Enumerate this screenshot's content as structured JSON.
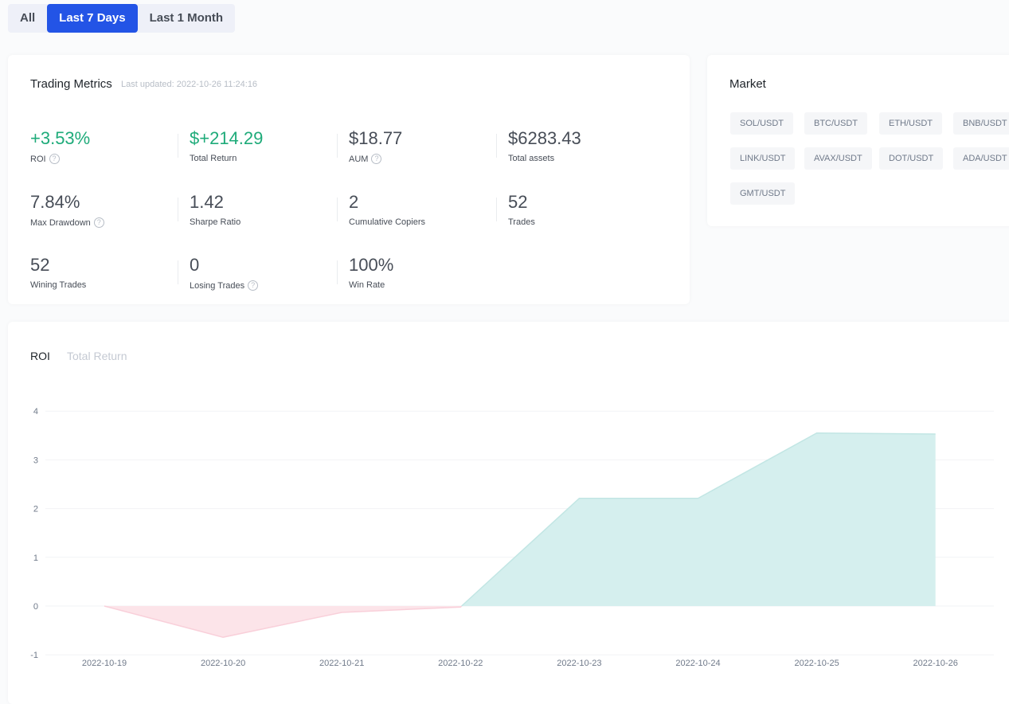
{
  "range_tabs": [
    {
      "label": "All"
    },
    {
      "label": "Last 7 Days",
      "active": true
    },
    {
      "label": "Last 1 Month"
    }
  ],
  "metrics": {
    "title": "Trading Metrics",
    "last_updated": "Last updated: 2022-10-26 11:24:16",
    "items": [
      {
        "value": "+3.53%",
        "label": "ROI",
        "help": true,
        "positive": true
      },
      {
        "value": "$+214.29",
        "label": "Total Return",
        "positive": true
      },
      {
        "value": "$18.77",
        "label": "AUM",
        "help": true
      },
      {
        "value": "$6283.43",
        "label": "Total assets"
      },
      {
        "value": "7.84%",
        "label": "Max Drawdown",
        "help": true
      },
      {
        "value": "1.42",
        "label": "Sharpe Ratio"
      },
      {
        "value": "2",
        "label": "Cumulative Copiers"
      },
      {
        "value": "52",
        "label": "Trades"
      },
      {
        "value": "52",
        "label": "Wining Trades"
      },
      {
        "value": "0",
        "label": "Losing Trades",
        "help": true
      },
      {
        "value": "100%",
        "label": "Win Rate"
      }
    ]
  },
  "market": {
    "title": "Market",
    "pairs": [
      "SOL/USDT",
      "BTC/USDT",
      "ETH/USDT",
      "BNB/USDT",
      "LINK/USDT",
      "AVAX/USDT",
      "DOT/USDT",
      "ADA/USDT",
      "GMT/USDT"
    ]
  },
  "chart_tabs": [
    {
      "label": "ROI",
      "active": true
    },
    {
      "label": "Total Return"
    }
  ],
  "chart_data": {
    "type": "area",
    "x": [
      "2022-10-19",
      "2022-10-20",
      "2022-10-21",
      "2022-10-22",
      "2022-10-23",
      "2022-10-24",
      "2022-10-25",
      "2022-10-26"
    ],
    "values": [
      0,
      -0.64,
      -0.13,
      -0.02,
      2.21,
      2.21,
      3.55,
      3.53
    ],
    "ylim": [
      -1,
      4
    ],
    "yticks": [
      -1,
      0,
      1,
      2,
      3,
      4
    ],
    "grid": true,
    "colors": {
      "positive": "#d5efee",
      "negative": "#fce4e9",
      "positive_line": "#c2e6e4",
      "negative_line": "#f9d0da"
    }
  }
}
